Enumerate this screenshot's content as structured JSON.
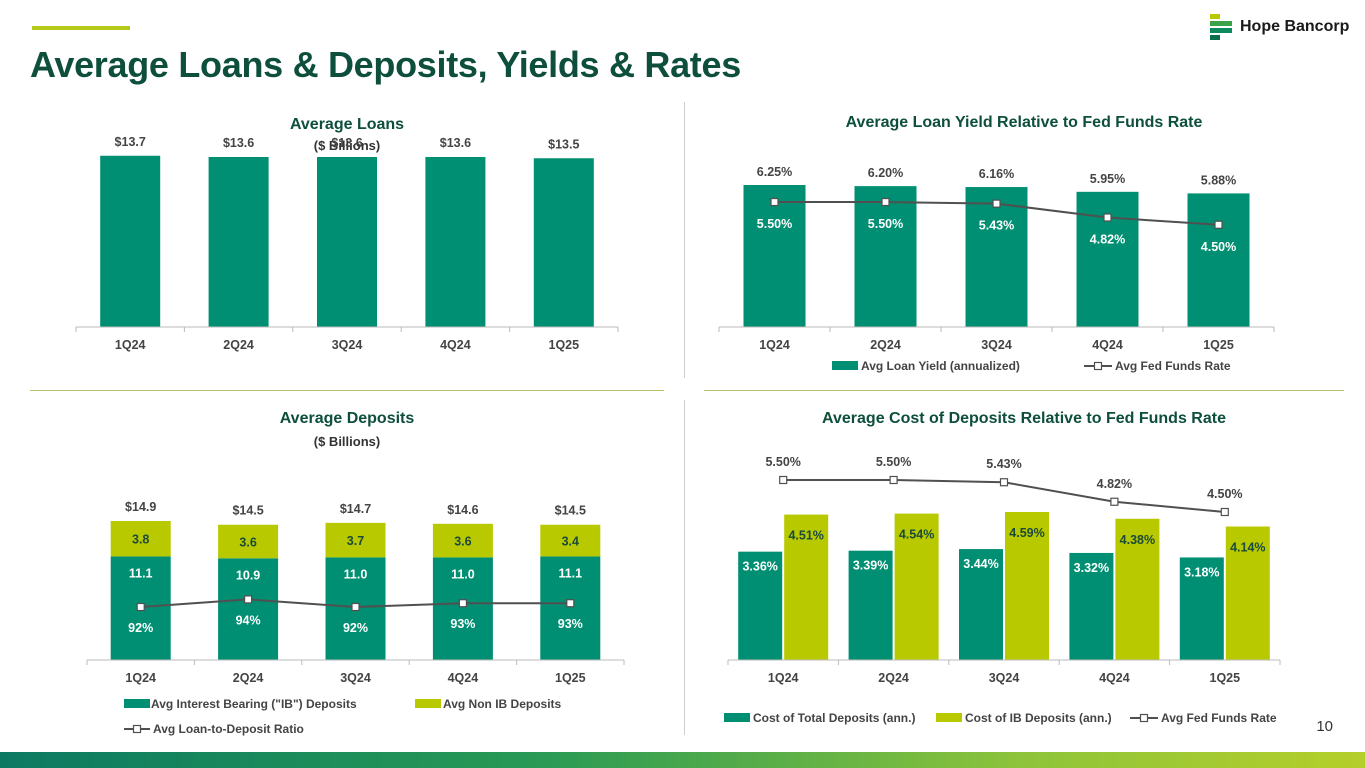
{
  "page": {
    "title": "Average Loans & Deposits, Yields & Rates",
    "page_number": "10",
    "logo_text": "Hope Bancorp"
  },
  "colors": {
    "teal": "#008f72",
    "lime": "#b8c900",
    "line": "#505050",
    "title": "#0d4f3c"
  },
  "chart_data": [
    {
      "id": "avg-loans",
      "type": "bar",
      "title": "Average Loans",
      "subtitle": "($ Billions)",
      "categories": [
        "1Q24",
        "2Q24",
        "3Q24",
        "4Q24",
        "1Q25"
      ],
      "values": [
        13.7,
        13.6,
        13.6,
        13.6,
        13.5
      ],
      "data_labels": [
        "$13.7",
        "$13.6",
        "$13.6",
        "$13.6",
        "$13.5"
      ],
      "ylim": [
        0,
        16
      ]
    },
    {
      "id": "loan-yield",
      "type": "bar",
      "title": "Average Loan Yield Relative to Fed Funds Rate",
      "categories": [
        "1Q24",
        "2Q24",
        "3Q24",
        "4Q24",
        "1Q25"
      ],
      "series": [
        {
          "name": "Avg Loan Yield (annualized)",
          "kind": "bar",
          "values": [
            6.25,
            6.2,
            6.16,
            5.95,
            5.88
          ],
          "labels": [
            "6.25%",
            "6.20%",
            "6.16%",
            "5.95%",
            "5.88%"
          ]
        },
        {
          "name": "Avg Fed Funds Rate",
          "kind": "line",
          "values": [
            5.5,
            5.5,
            5.43,
            4.82,
            4.5
          ],
          "labels": [
            "5.50%",
            "5.50%",
            "5.43%",
            "4.82%",
            "4.50%"
          ]
        }
      ],
      "ylim": [
        0,
        6.5
      ]
    },
    {
      "id": "avg-deposits",
      "type": "bar",
      "title": "Average Deposits",
      "subtitle": "($ Billions)",
      "categories": [
        "1Q24",
        "2Q24",
        "3Q24",
        "4Q24",
        "1Q25"
      ],
      "totals": [
        "$14.9",
        "$14.5",
        "$14.7",
        "$14.6",
        "$14.5"
      ],
      "series": [
        {
          "name": "Avg Interest Bearing (\"IB\") Deposits",
          "kind": "stacked-bar",
          "values": [
            11.1,
            10.9,
            11.0,
            11.0,
            11.1
          ],
          "labels": [
            "11.1",
            "10.9",
            "11.0",
            "11.0",
            "11.1"
          ]
        },
        {
          "name": "Avg Non IB Deposits",
          "kind": "stacked-bar",
          "values": [
            3.8,
            3.6,
            3.7,
            3.6,
            3.4
          ],
          "labels": [
            "3.8",
            "3.6",
            "3.7",
            "3.6",
            "3.4"
          ]
        },
        {
          "name": "Avg Loan-to-Deposit Ratio",
          "kind": "line",
          "values": [
            92,
            94,
            92,
            93,
            93
          ],
          "labels": [
            "92%",
            "94%",
            "92%",
            "93%",
            "93%"
          ]
        }
      ],
      "ylim": [
        0,
        17
      ]
    },
    {
      "id": "deposit-cost",
      "type": "bar",
      "title": "Average Cost of Deposits Relative to Fed Funds Rate",
      "categories": [
        "1Q24",
        "2Q24",
        "3Q24",
        "4Q24",
        "1Q25"
      ],
      "series": [
        {
          "name": "Cost of Total Deposits (ann.)",
          "kind": "bar",
          "values": [
            3.36,
            3.39,
            3.44,
            3.32,
            3.18
          ],
          "labels": [
            "3.36%",
            "3.39%",
            "3.44%",
            "3.32%",
            "3.18%"
          ]
        },
        {
          "name": "Cost of IB Deposits (ann.)",
          "kind": "bar",
          "values": [
            4.51,
            4.54,
            4.59,
            4.38,
            4.14
          ],
          "labels": [
            "4.51%",
            "4.54%",
            "4.59%",
            "4.38%",
            "4.14%"
          ]
        },
        {
          "name": "Avg Fed Funds Rate",
          "kind": "line",
          "values": [
            5.5,
            5.5,
            5.43,
            4.82,
            4.5
          ],
          "labels": [
            "5.50%",
            "5.50%",
            "5.43%",
            "4.82%",
            "4.50%"
          ]
        }
      ],
      "ylim": [
        0,
        6.5
      ]
    }
  ]
}
